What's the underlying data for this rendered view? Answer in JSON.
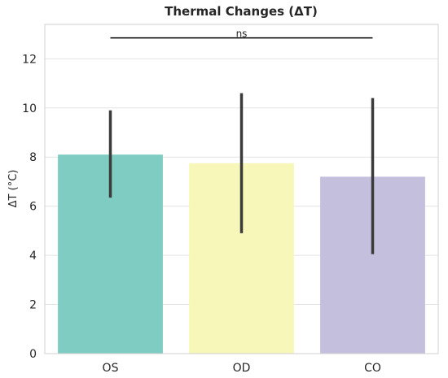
{
  "chart_data": {
    "type": "bar",
    "title": "Thermal Changes (ΔT)",
    "xlabel": "",
    "ylabel": "ΔT (°C)",
    "categories": [
      "OS",
      "OD",
      "CO"
    ],
    "values": [
      8.1,
      7.75,
      7.2
    ],
    "error_bars": [
      {
        "low": 6.35,
        "high": 9.9
      },
      {
        "low": 4.9,
        "high": 10.6
      },
      {
        "low": 4.05,
        "high": 10.4
      }
    ],
    "colors": [
      "#7fccc2",
      "#f7f7b9",
      "#c3bfdc"
    ],
    "errorbar_color": "#3b3b3b",
    "ylim": [
      0,
      13.4
    ],
    "yticks": [
      0,
      2,
      4,
      6,
      8,
      10,
      12
    ],
    "grid": true,
    "grid_axis": "y",
    "significance": {
      "label": "ns",
      "from_category": "OS",
      "to_category": "CO",
      "y": 12.85
    }
  }
}
